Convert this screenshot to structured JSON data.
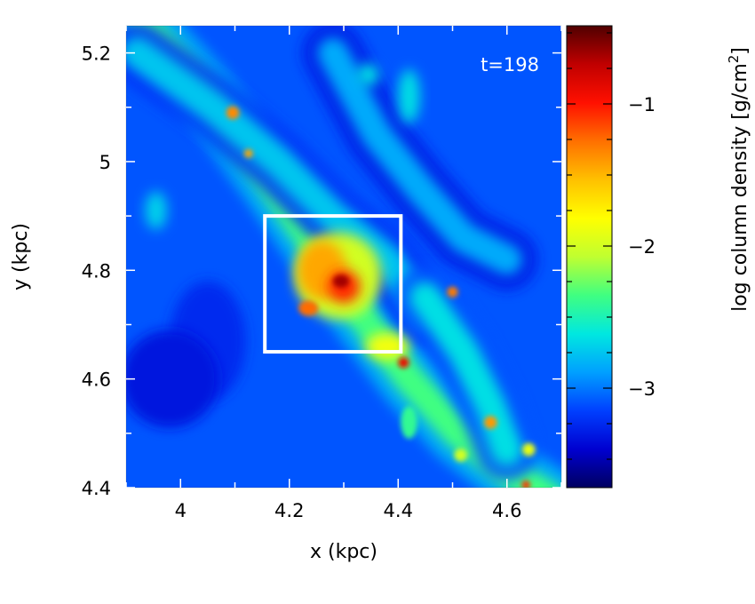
{
  "chart_data": {
    "type": "heatmap",
    "title": "",
    "annotation": "t=198",
    "xlabel": "x (kpc)",
    "ylabel": "y (kpc)",
    "xlim": [
      3.9,
      4.7
    ],
    "ylim": [
      4.4,
      5.25
    ],
    "x_ticks": [
      {
        "value": 4.0,
        "label": "4"
      },
      {
        "value": 4.2,
        "label": "4.2"
      },
      {
        "value": 4.4,
        "label": "4.4"
      },
      {
        "value": 4.6,
        "label": "4.6"
      }
    ],
    "y_ticks": [
      {
        "value": 4.4,
        "label": "4.4"
      },
      {
        "value": 4.6,
        "label": "4.6"
      },
      {
        "value": 4.8,
        "label": "4.8"
      },
      {
        "value": 5.0,
        "label": "5"
      },
      {
        "value": 5.2,
        "label": "5.2"
      }
    ],
    "colorbar": {
      "label": "log column density [g/cm",
      "label_superscript": "2",
      "label_close": "]",
      "range": [
        -3.7,
        -0.45
      ],
      "ticks": [
        {
          "value": -1,
          "label": "−1"
        },
        {
          "value": -2,
          "label": "−2"
        },
        {
          "value": -3,
          "label": "−3"
        }
      ],
      "colormap": [
        "#000060",
        "#0000d0",
        "#0040ff",
        "#00a0ff",
        "#00e8e0",
        "#40ff80",
        "#c0ff30",
        "#ffff00",
        "#ffc000",
        "#ff7000",
        "#ff1000",
        "#c00000",
        "#500000"
      ]
    },
    "background_value": -3.1,
    "features": [
      {
        "kind": "filament",
        "points": [
          [
            3.93,
            5.25
          ],
          [
            4.05,
            5.12
          ],
          [
            4.16,
            4.97
          ],
          [
            4.25,
            4.84
          ],
          [
            4.33,
            4.72
          ],
          [
            4.42,
            4.6
          ],
          [
            4.51,
            4.5
          ],
          [
            4.6,
            4.43
          ],
          [
            4.68,
            4.38
          ]
        ],
        "value": -2.35
      },
      {
        "kind": "filament",
        "points": [
          [
            3.92,
            5.2
          ],
          [
            4.06,
            5.1
          ],
          [
            4.18,
            5.0
          ],
          [
            4.28,
            4.9
          ],
          [
            4.38,
            4.82
          ],
          [
            4.45,
            4.72
          ]
        ],
        "value": -2.75
      },
      {
        "kind": "filament",
        "points": [
          [
            4.28,
            5.2
          ],
          [
            4.36,
            5.05
          ],
          [
            4.44,
            4.95
          ],
          [
            4.52,
            4.86
          ],
          [
            4.6,
            4.82
          ]
        ],
        "value": -2.85
      },
      {
        "kind": "filament",
        "points": [
          [
            4.45,
            4.75
          ],
          [
            4.52,
            4.65
          ],
          [
            4.57,
            4.55
          ],
          [
            4.6,
            4.47
          ]
        ],
        "value": -2.65
      },
      {
        "kind": "blob",
        "x": 4.29,
        "y": 4.79,
        "rx": 0.08,
        "ry": 0.08,
        "value": -2.0
      },
      {
        "kind": "blob",
        "x": 4.26,
        "y": 4.8,
        "rx": 0.045,
        "ry": 0.055,
        "value": -1.45
      },
      {
        "kind": "blob",
        "x": 4.3,
        "y": 4.77,
        "rx": 0.03,
        "ry": 0.03,
        "value": -1.05
      },
      {
        "kind": "blob",
        "x": 4.295,
        "y": 4.78,
        "rx": 0.015,
        "ry": 0.012,
        "value": -0.65
      },
      {
        "kind": "blob",
        "x": 4.235,
        "y": 4.73,
        "rx": 0.018,
        "ry": 0.014,
        "value": -1.25
      },
      {
        "kind": "blob",
        "x": 4.38,
        "y": 4.66,
        "rx": 0.04,
        "ry": 0.025,
        "value": -1.85
      },
      {
        "kind": "blob",
        "x": 4.41,
        "y": 4.63,
        "rx": 0.01,
        "ry": 0.01,
        "value": -0.9
      },
      {
        "kind": "blob",
        "x": 4.096,
        "y": 5.09,
        "rx": 0.012,
        "ry": 0.012,
        "value": -1.35
      },
      {
        "kind": "blob",
        "x": 4.125,
        "y": 5.015,
        "rx": 0.008,
        "ry": 0.008,
        "value": -1.45
      },
      {
        "kind": "blob",
        "x": 4.5,
        "y": 4.76,
        "rx": 0.01,
        "ry": 0.01,
        "value": -1.3
      },
      {
        "kind": "blob",
        "x": 4.57,
        "y": 4.52,
        "rx": 0.012,
        "ry": 0.012,
        "value": -1.4
      },
      {
        "kind": "blob",
        "x": 4.635,
        "y": 4.405,
        "rx": 0.008,
        "ry": 0.008,
        "value": -1.1
      },
      {
        "kind": "blob",
        "x": 4.64,
        "y": 4.47,
        "rx": 0.012,
        "ry": 0.012,
        "value": -1.9
      },
      {
        "kind": "blob",
        "x": 4.515,
        "y": 4.46,
        "rx": 0.012,
        "ry": 0.012,
        "value": -2.0
      },
      {
        "kind": "blob",
        "x": 4.345,
        "y": 5.16,
        "rx": 0.02,
        "ry": 0.02,
        "value": -2.65
      },
      {
        "kind": "blob",
        "x": 4.42,
        "y": 5.12,
        "rx": 0.02,
        "ry": 0.05,
        "value": -2.65
      },
      {
        "kind": "blob",
        "x": 3.955,
        "y": 4.91,
        "rx": 0.02,
        "ry": 0.035,
        "value": -2.7
      },
      {
        "kind": "blob",
        "x": 4.42,
        "y": 4.52,
        "rx": 0.015,
        "ry": 0.03,
        "value": -2.4
      },
      {
        "kind": "blob",
        "x": 4.05,
        "y": 4.67,
        "rx": 0.07,
        "ry": 0.11,
        "value": -3.25
      },
      {
        "kind": "blob",
        "x": 3.98,
        "y": 4.6,
        "rx": 0.09,
        "ry": 0.09,
        "value": -3.35
      }
    ],
    "box": {
      "x0": 4.155,
      "x1": 4.405,
      "y0": 4.65,
      "y1": 4.9
    }
  }
}
